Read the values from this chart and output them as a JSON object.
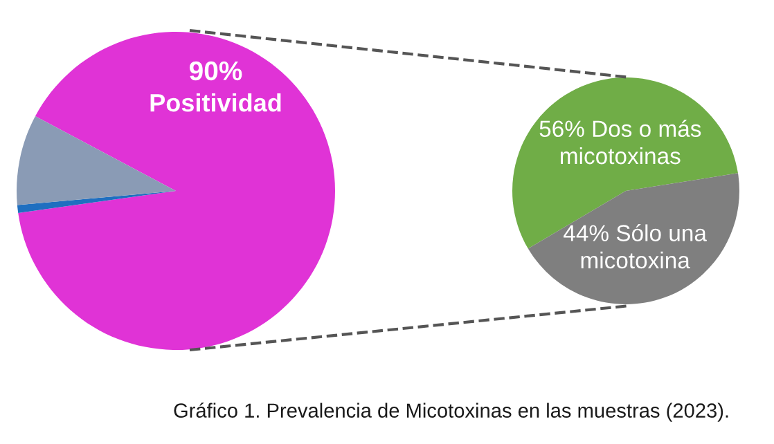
{
  "chart_data": [
    {
      "type": "pie",
      "categories": [
        "Positividad",
        null,
        null
      ],
      "values": [
        90,
        0.8,
        9.2
      ],
      "colors": [
        "#e033d6",
        "#1f6fc0",
        "#8a9bb5"
      ],
      "value_labels": [
        "90%",
        null,
        null
      ]
    },
    {
      "type": "pie",
      "categories": [
        "Dos o más micotoxinas",
        "Sólo una micotoxina"
      ],
      "values": [
        56,
        44
      ],
      "colors": [
        "#70ad47",
        "#7f7f7f"
      ],
      "value_labels": [
        "56%",
        "44%"
      ],
      "annotations": [
        "Gráfico 1. Prevalencia de Micotoxinas en las muestras (2023)."
      ]
    }
  ]
}
